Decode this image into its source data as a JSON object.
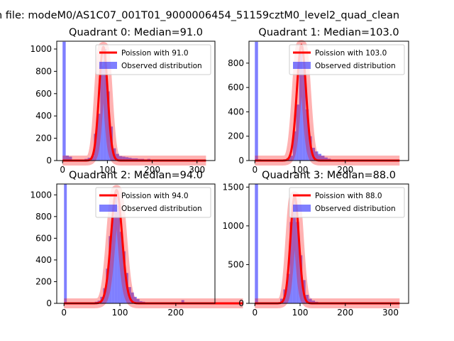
{
  "figure": {
    "suptitle": "n file: modeM0/AS1C07_001T01_9000006454_51159cztM0_level2_quad_clean"
  },
  "chart_data": [
    {
      "type": "histogram+line",
      "title": "Quadrant 0: Median=91.0",
      "xlim": [
        -13,
        340
      ],
      "ylim": [
        0,
        1070
      ],
      "xticks": [
        0,
        100,
        200,
        300
      ],
      "xtick_labels": [
        "0",
        "100",
        "200",
        "300"
      ],
      "yticks": [
        0,
        200,
        400,
        600,
        800,
        1000
      ],
      "ytick_labels": [
        "0",
        "200",
        "400",
        "600",
        "800",
        "1000"
      ],
      "median": 91.0,
      "peak": 1020,
      "bins": [
        [
          0,
          7,
          1065
        ],
        [
          7,
          14,
          45
        ],
        [
          14,
          21,
          35
        ],
        [
          21,
          28,
          10
        ],
        [
          28,
          35,
          10
        ],
        [
          35,
          42,
          10
        ],
        [
          42,
          49,
          10
        ],
        [
          49,
          56,
          15
        ],
        [
          56,
          63,
          25
        ],
        [
          63,
          70,
          40
        ],
        [
          70,
          77,
          240
        ],
        [
          77,
          84,
          420
        ],
        [
          84,
          91,
          850
        ],
        [
          91,
          98,
          1000
        ],
        [
          98,
          105,
          620
        ],
        [
          105,
          112,
          305
        ],
        [
          112,
          119,
          110
        ],
        [
          119,
          126,
          60
        ],
        [
          126,
          133,
          40
        ],
        [
          133,
          140,
          35
        ],
        [
          140,
          147,
          30
        ],
        [
          147,
          154,
          25
        ],
        [
          154,
          161,
          20
        ],
        [
          161,
          168,
          20
        ],
        [
          168,
          175,
          15
        ],
        [
          175,
          182,
          15
        ],
        [
          182,
          189,
          10
        ],
        [
          189,
          196,
          15
        ]
      ],
      "legend": [
        "Poission with 91.0",
        "Observed distribution"
      ],
      "legend_loc": "upper right"
    },
    {
      "type": "histogram+line",
      "title": "Quadrant 1: Median=103.0",
      "xlim": [
        -13,
        340
      ],
      "ylim": [
        0,
        980
      ],
      "xticks": [
        0,
        100,
        200
      ],
      "xtick_labels": [
        "0",
        "100",
        "200"
      ],
      "yticks": [
        0,
        200,
        400,
        600,
        800
      ],
      "ytick_labels": [
        "0",
        "200",
        "400",
        "600",
        "800"
      ],
      "median": 103.0,
      "peak": 950,
      "bins": [
        [
          0,
          7,
          975
        ],
        [
          7,
          14,
          10
        ],
        [
          14,
          21,
          5
        ],
        [
          21,
          28,
          5
        ],
        [
          28,
          35,
          5
        ],
        [
          35,
          42,
          5
        ],
        [
          42,
          49,
          5
        ],
        [
          49,
          56,
          5
        ],
        [
          56,
          63,
          5
        ],
        [
          63,
          70,
          10
        ],
        [
          70,
          77,
          20
        ],
        [
          77,
          84,
          40
        ],
        [
          84,
          91,
          240
        ],
        [
          91,
          98,
          460
        ],
        [
          98,
          105,
          890
        ],
        [
          105,
          112,
          750
        ],
        [
          112,
          119,
          420
        ],
        [
          119,
          126,
          200
        ],
        [
          126,
          133,
          105
        ],
        [
          133,
          140,
          75
        ],
        [
          140,
          147,
          55
        ],
        [
          147,
          154,
          40
        ],
        [
          154,
          161,
          25
        ],
        [
          161,
          168,
          15
        ]
      ],
      "legend": [
        "Poission with 103.0",
        "Observed distribution"
      ],
      "legend_loc": "upper right"
    },
    {
      "type": "histogram+line",
      "title": "Quadrant 2: Median=94.0",
      "xlim": [
        -13,
        270
      ],
      "ylim": [
        0,
        1100
      ],
      "xticks": [
        0,
        100,
        200
      ],
      "xtick_labels": [
        "0",
        "100",
        "200"
      ],
      "yticks": [
        0,
        200,
        400,
        600,
        800,
        1000
      ],
      "ytick_labels": [
        "0",
        "200",
        "400",
        "600",
        "800",
        "1000"
      ],
      "median": 94.0,
      "peak": 1045,
      "bins": [
        [
          0,
          5,
          1100
        ],
        [
          55,
          60,
          15
        ],
        [
          60,
          65,
          25
        ],
        [
          65,
          70,
          60
        ],
        [
          70,
          75,
          140
        ],
        [
          75,
          80,
          320
        ],
        [
          80,
          85,
          620
        ],
        [
          85,
          90,
          790
        ],
        [
          90,
          95,
          1000
        ],
        [
          95,
          100,
          900
        ],
        [
          100,
          105,
          660
        ],
        [
          105,
          110,
          480
        ],
        [
          110,
          115,
          280
        ],
        [
          115,
          120,
          150
        ],
        [
          120,
          125,
          100
        ],
        [
          125,
          130,
          60
        ],
        [
          130,
          135,
          40
        ],
        [
          135,
          140,
          20
        ],
        [
          140,
          145,
          15
        ],
        [
          145,
          150,
          10
        ],
        [
          210,
          215,
          30
        ]
      ],
      "legend": [
        "Poission with 94.0",
        "Observed distribution"
      ],
      "legend_loc": "upper right"
    },
    {
      "type": "histogram+line",
      "title": "Quadrant 3: Median=88.0",
      "xlim": [
        -13,
        340
      ],
      "ylim": [
        0,
        1540
      ],
      "xticks": [
        0,
        100,
        200,
        300
      ],
      "xtick_labels": [
        "0",
        "100",
        "200",
        "300"
      ],
      "yticks": [
        0,
        500,
        1000,
        1500
      ],
      "ytick_labels": [
        "0",
        "500",
        "1000",
        "1500"
      ],
      "median": 88.0,
      "peak": 1380,
      "bins": [
        [
          0,
          7,
          1540
        ],
        [
          56,
          63,
          60
        ],
        [
          63,
          70,
          180
        ],
        [
          70,
          77,
          380
        ],
        [
          77,
          84,
          1050
        ],
        [
          84,
          91,
          1350
        ],
        [
          91,
          98,
          1050
        ],
        [
          98,
          105,
          620
        ],
        [
          105,
          112,
          300
        ],
        [
          112,
          119,
          110
        ],
        [
          119,
          126,
          60
        ],
        [
          126,
          133,
          35
        ],
        [
          133,
          140,
          20
        ],
        [
          140,
          147,
          10
        ],
        [
          147,
          154,
          8
        ]
      ],
      "legend": [
        "Poission with 88.0",
        "Observed distribution"
      ],
      "legend_loc": "upper right"
    }
  ]
}
